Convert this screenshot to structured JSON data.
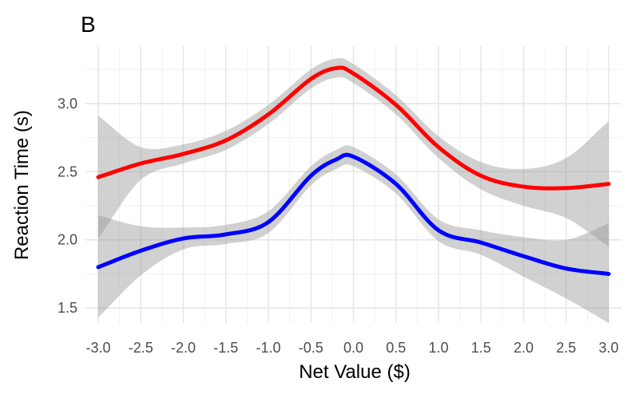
{
  "panel_label": "B",
  "chart_data": {
    "type": "line",
    "title": "",
    "xlabel": "Net Value ($)",
    "ylabel": "Reaction Time (s)",
    "xlim": [
      -3.15,
      3.15
    ],
    "ylim": [
      1.39,
      3.42
    ],
    "x_ticks": [
      -3.0,
      -2.5,
      -2.0,
      -1.5,
      -1.0,
      -0.5,
      0.0,
      0.5,
      1.0,
      1.5,
      2.0,
      2.5,
      3.0
    ],
    "x_tick_labels": [
      "-3.0",
      "-2.5",
      "-2.0",
      "-1.5",
      "-1.0",
      "-0.5",
      "0.0",
      "0.5",
      "1.0",
      "1.5",
      "2.0",
      "2.5",
      "3.0"
    ],
    "y_ticks": [
      1.5,
      2.0,
      2.5,
      3.0
    ],
    "y_tick_labels": [
      "1.5",
      "2.0",
      "2.5",
      "3.0"
    ],
    "grid": true,
    "legend": "none",
    "series": [
      {
        "color": "#ff0000",
        "x": [
          -3.0,
          -2.5,
          -2.0,
          -1.5,
          -1.0,
          -0.5,
          -0.2,
          0.0,
          0.5,
          1.0,
          1.5,
          2.0,
          2.5,
          3.0
        ],
        "y": [
          2.46,
          2.56,
          2.63,
          2.73,
          2.92,
          3.18,
          3.26,
          3.22,
          2.99,
          2.68,
          2.47,
          2.39,
          2.38,
          2.41
        ],
        "ci_lower": [
          2.01,
          2.44,
          2.56,
          2.66,
          2.85,
          3.11,
          3.19,
          3.15,
          2.92,
          2.6,
          2.37,
          2.25,
          2.16,
          1.95
        ],
        "ci_upper": [
          2.91,
          2.68,
          2.7,
          2.8,
          2.99,
          3.25,
          3.33,
          3.29,
          3.06,
          2.76,
          2.57,
          2.52,
          2.6,
          2.87
        ]
      },
      {
        "color": "#0000ff",
        "x": [
          -3.0,
          -2.5,
          -2.0,
          -1.5,
          -1.0,
          -0.5,
          -0.2,
          0.0,
          0.5,
          1.0,
          1.5,
          2.0,
          2.5,
          3.0
        ],
        "y": [
          1.8,
          1.92,
          2.01,
          2.04,
          2.13,
          2.47,
          2.59,
          2.61,
          2.41,
          2.07,
          1.98,
          1.88,
          1.79,
          1.75
        ],
        "ci_lower": [
          1.43,
          1.74,
          1.93,
          1.97,
          2.05,
          2.4,
          2.52,
          2.54,
          2.34,
          1.99,
          1.89,
          1.73,
          1.57,
          1.39
        ],
        "ci_upper": [
          2.18,
          2.1,
          2.09,
          2.11,
          2.21,
          2.54,
          2.66,
          2.68,
          2.48,
          2.15,
          2.07,
          2.02,
          2.0,
          2.12
        ]
      }
    ]
  }
}
